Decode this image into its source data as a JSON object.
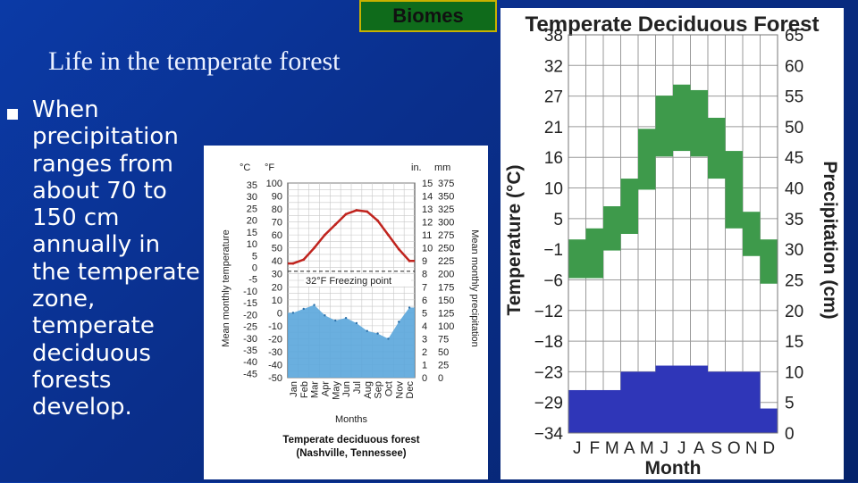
{
  "header": {
    "badge_label": "Biomes"
  },
  "slide": {
    "title": "Life in the temperate forest",
    "bullet_lines": [
      "When",
      "precipitation",
      "ranges from",
      "about 70 to",
      "150 cm",
      "annually in",
      "the temperate",
      "zone,",
      "temperate",
      "deciduous",
      "forests",
      "develop."
    ]
  },
  "chart_data": [
    {
      "type": "line",
      "title": "Temperate deciduous forest",
      "subtitle": "(Nashville, Tennessee)",
      "xlabel": "Months",
      "ylabel_left": "Mean monthly temperature",
      "ylabel_right": "Mean monthly precipitation",
      "units": {
        "temp_c": "°C",
        "temp_f": "°F",
        "precip_in": "in.",
        "precip_mm": "mm"
      },
      "annotation": "32°F Freezing point",
      "categories": [
        "Jan",
        "Feb",
        "Mar",
        "Apr",
        "May",
        "Jun",
        "Jul",
        "Aug",
        "Sep",
        "Oct",
        "Nov",
        "Dec"
      ],
      "y_ticks_c": [
        35,
        30,
        25,
        20,
        15,
        10,
        5,
        0,
        -5,
        -10,
        -15,
        -20,
        -25,
        -30,
        -35,
        -40,
        -45
      ],
      "y_ticks_f": [
        100,
        90,
        80,
        70,
        60,
        50,
        40,
        30,
        20,
        10,
        0,
        -10,
        -20,
        -30,
        -40,
        -50
      ],
      "y_ticks_in": [
        15,
        14,
        13,
        12,
        11,
        10,
        9,
        8,
        7,
        6,
        5,
        4,
        3,
        2,
        1,
        0
      ],
      "y_ticks_mm": [
        375,
        350,
        325,
        300,
        275,
        250,
        225,
        200,
        175,
        150,
        125,
        100,
        75,
        50,
        25,
        0
      ],
      "ylim_f": [
        -50,
        100
      ],
      "ylim_in": [
        0,
        15
      ],
      "series": [
        {
          "name": "Mean monthly temperature",
          "unit": "°F",
          "values": [
            38,
            41,
            50,
            60,
            68,
            76,
            79,
            78,
            71,
            60,
            49,
            40
          ]
        },
        {
          "name": "Mean monthly precipitation",
          "unit": "in.",
          "values": [
            5.0,
            5.3,
            5.6,
            4.8,
            4.4,
            4.6,
            4.2,
            3.6,
            3.4,
            3.0,
            4.3,
            5.4
          ]
        }
      ],
      "colors": {
        "temperature": "#c0241e",
        "precipitation": "#5aa6db"
      }
    },
    {
      "type": "bar",
      "title": "Temperate Deciduous Forest",
      "xlabel": "Month",
      "ylabel_left": "Temperature (°C)",
      "ylabel_right": "Precipitation (cm)",
      "categories": [
        "J",
        "F",
        "M",
        "A",
        "M",
        "J",
        "J",
        "A",
        "S",
        "O",
        "N",
        "D"
      ],
      "y_ticks_left": [
        "38",
        "32",
        "27",
        "21",
        "16",
        "10",
        "5",
        "−1",
        "−6",
        "−12",
        "−18",
        "−23",
        "−29",
        "−34"
      ],
      "y_ticks_right": [
        "65",
        "60",
        "55",
        "50",
        "45",
        "40",
        "35",
        "30",
        "25",
        "20",
        "15",
        "10",
        "5",
        "0"
      ],
      "ylim_right": [
        0,
        65
      ],
      "series": [
        {
          "name": "Temperature range",
          "unit": "°C",
          "low": [
            -6,
            -6,
            -1,
            2,
            10,
            16,
            17,
            16,
            12,
            3,
            -2,
            -7
          ],
          "high": [
            1,
            3,
            7,
            12,
            21,
            27,
            29,
            28,
            23,
            17,
            6,
            1
          ]
        },
        {
          "name": "Precipitation",
          "unit": "cm",
          "values": [
            7,
            7,
            7,
            10,
            10,
            11,
            11,
            11,
            10,
            10,
            10,
            4
          ]
        }
      ],
      "colors": {
        "temperature": "#3e9a4b",
        "precipitation": "#2f36b8"
      }
    }
  ]
}
